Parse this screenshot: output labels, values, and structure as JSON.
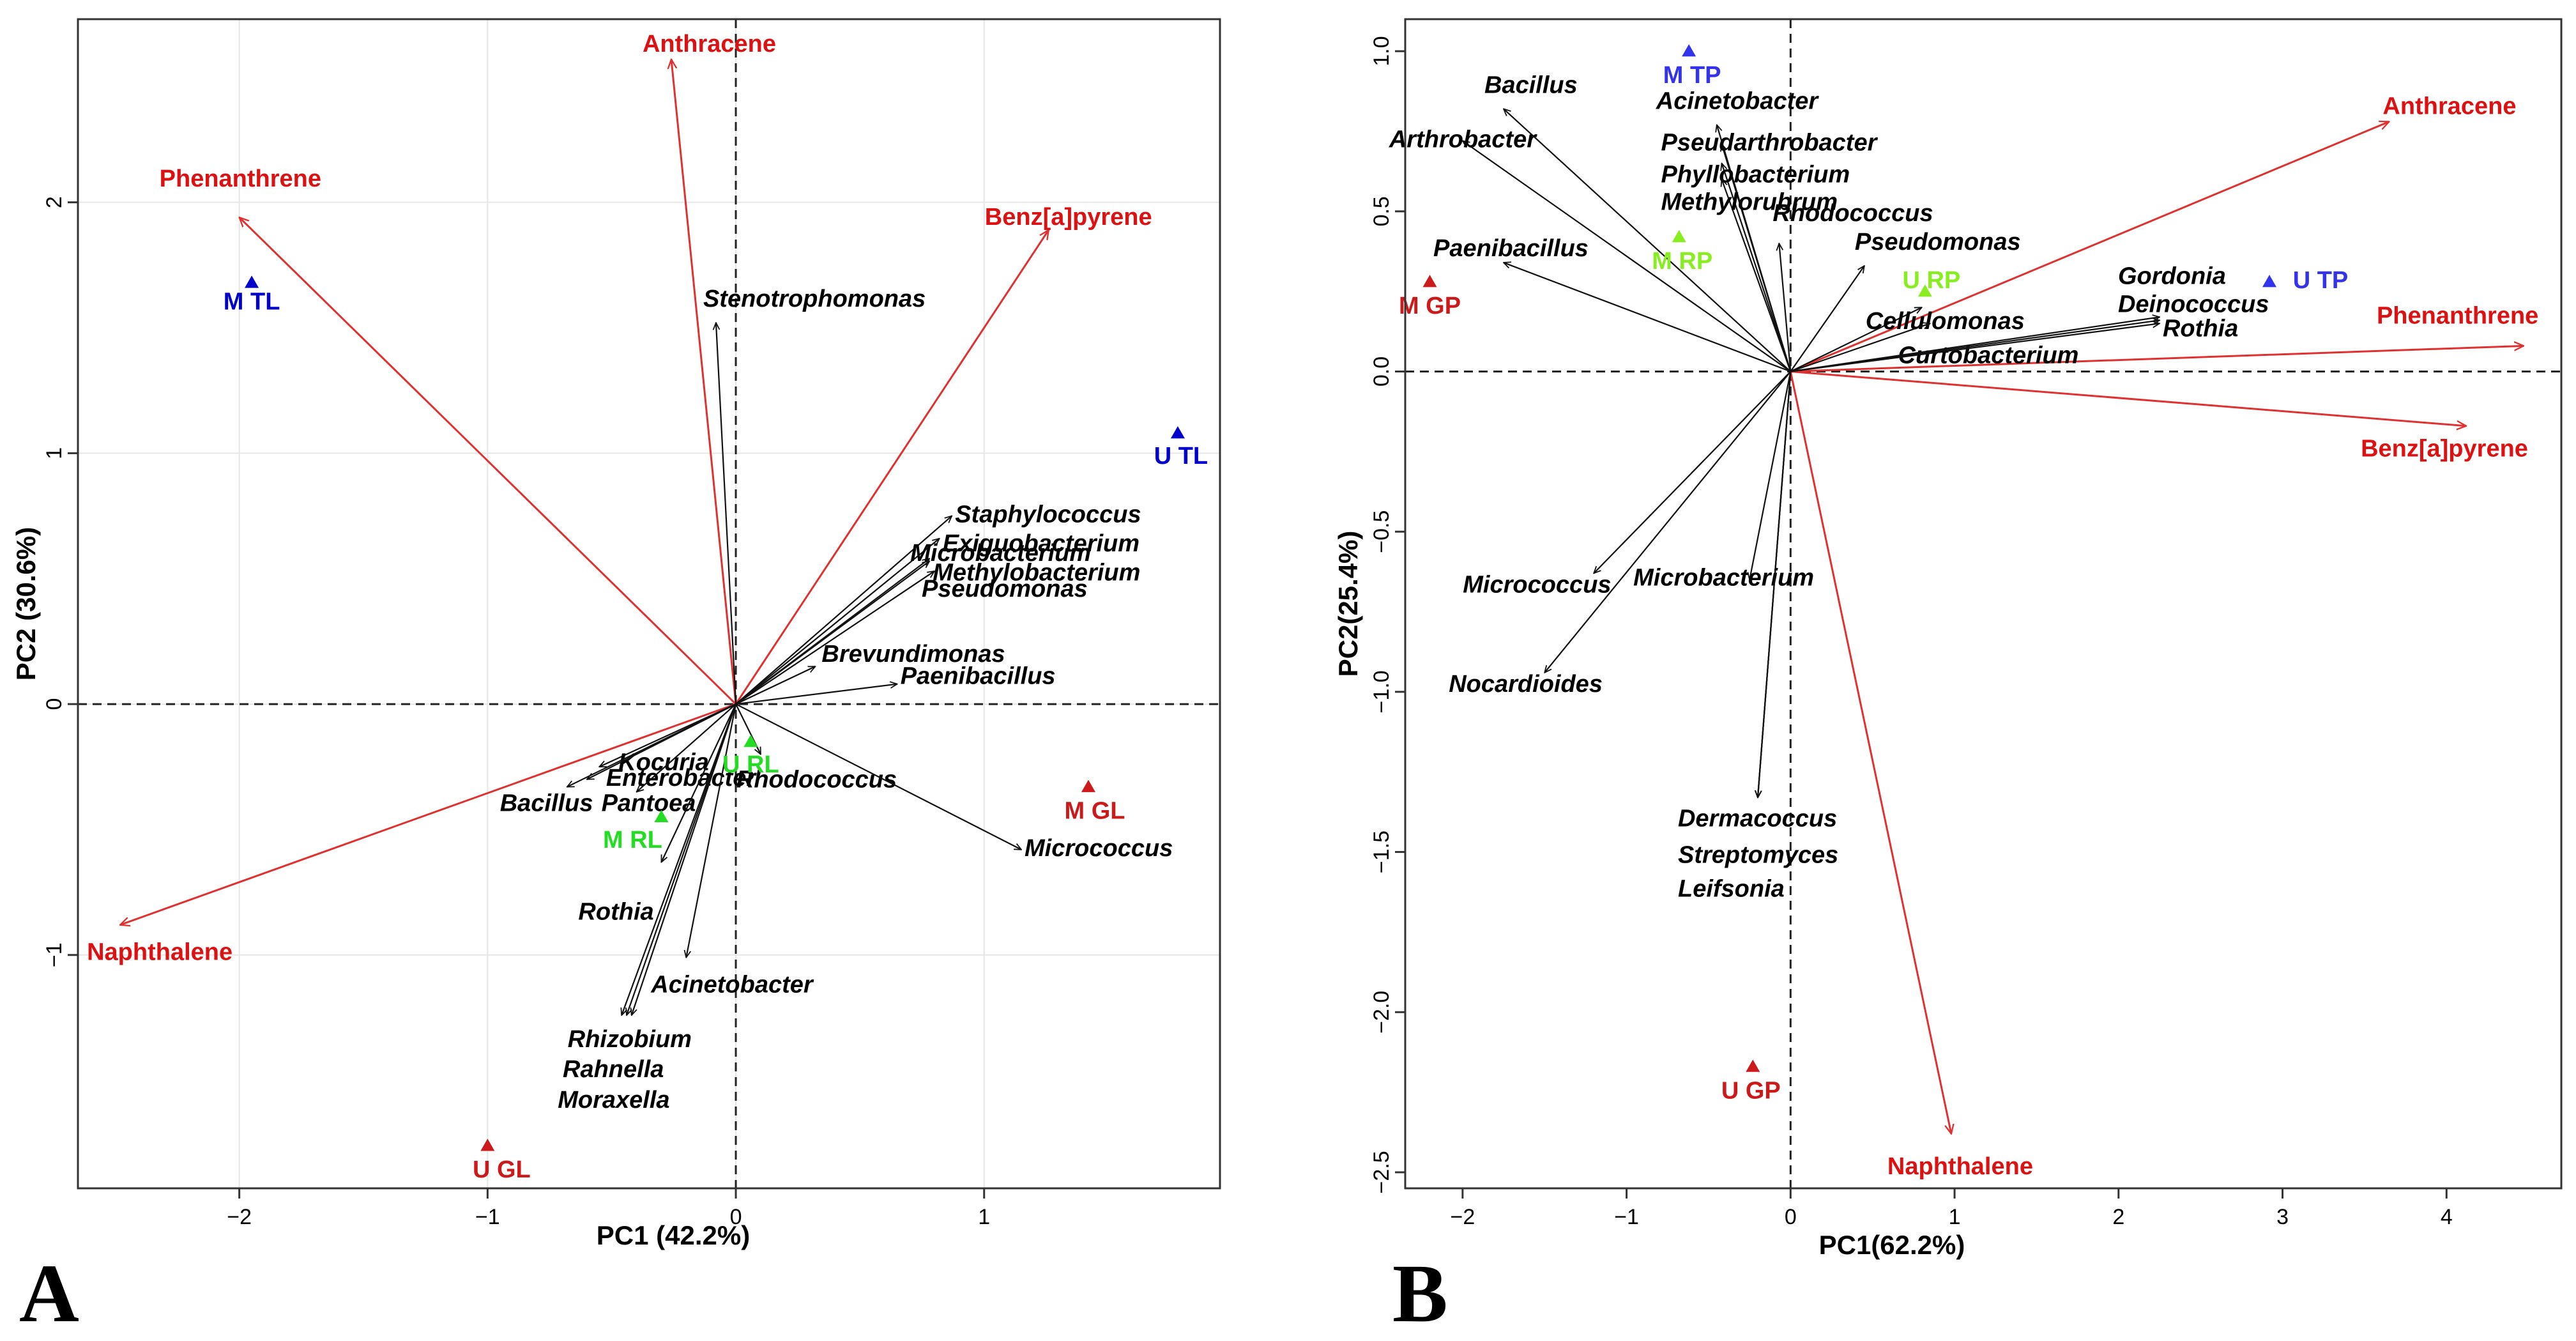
{
  "chart_data": [
    {
      "type": "scatter",
      "title": "",
      "panel_label": "A",
      "xlabel": "PC1 (42.2%)",
      "ylabel": "PC2 (30.6%)",
      "xlim": [
        -2.65,
        1.95
      ],
      "ylim": [
        -1.93,
        2.73
      ],
      "xticks": [
        -2,
        -1,
        0,
        1
      ],
      "yticks": [
        -1,
        0,
        1,
        2
      ],
      "grid": true,
      "env_vectors": [
        {
          "name": "Anthracene",
          "x": -0.26,
          "y": 2.57
        },
        {
          "name": "Phenanthrene",
          "x": -2.0,
          "y": 1.94
        },
        {
          "name": "Benz[a]pyrene",
          "x": 1.26,
          "y": 1.89
        },
        {
          "name": "Naphthalene",
          "x": -2.48,
          "y": -0.88
        }
      ],
      "species_vectors": [
        {
          "name": "Stenotrophomonas",
          "x": -0.08,
          "y": 1.52
        },
        {
          "name": "Staphylococcus",
          "x": 0.87,
          "y": 0.75
        },
        {
          "name": "Exiguobacterium",
          "x": 0.82,
          "y": 0.66
        },
        {
          "name": "Methylobacterium",
          "x": 0.78,
          "y": 0.58
        },
        {
          "name": "Microbacterium",
          "x": 0.78,
          "y": 0.57
        },
        {
          "name": "Pseudomonas",
          "x": 0.8,
          "y": 0.53
        },
        {
          "name": "Brevundimonas",
          "x": 0.32,
          "y": 0.15
        },
        {
          "name": "Paenibacillus",
          "x": 0.65,
          "y": 0.08
        },
        {
          "name": "Rhodococcus",
          "x": 0.1,
          "y": -0.2
        },
        {
          "name": "Micrococcus",
          "x": 1.15,
          "y": -0.58
        },
        {
          "name": "Kocuria",
          "x": -0.55,
          "y": -0.25
        },
        {
          "name": "Enterobacter",
          "x": -0.6,
          "y": -0.3
        },
        {
          "name": "Pantoea",
          "x": -0.4,
          "y": -0.35
        },
        {
          "name": "Bacillus",
          "x": -0.68,
          "y": -0.33
        },
        {
          "name": "Rothia",
          "x": -0.3,
          "y": -0.63
        },
        {
          "name": "Acinetobacter",
          "x": -0.2,
          "y": -1.01
        },
        {
          "name": "Rhizobium",
          "x": -0.42,
          "y": -1.24
        },
        {
          "name": "Rahnella",
          "x": -0.44,
          "y": -1.24
        },
        {
          "name": "Moraxella",
          "x": -0.46,
          "y": -1.24
        }
      ],
      "samples": [
        {
          "name": "M TL",
          "x": -1.95,
          "y": 1.68,
          "color": "#0000cc"
        },
        {
          "name": "U TL",
          "x": 1.78,
          "y": 1.08,
          "color": "#0000cc"
        },
        {
          "name": "M GL",
          "x": 1.42,
          "y": -0.33,
          "color": "#cc1a1a"
        },
        {
          "name": "U GL",
          "x": -1.0,
          "y": -1.76,
          "color": "#cc1a1a"
        },
        {
          "name": "U RL",
          "x": 0.06,
          "y": -0.15,
          "color": "#22dd22"
        },
        {
          "name": "M RL",
          "x": -0.3,
          "y": -0.45,
          "color": "#22dd22"
        }
      ]
    },
    {
      "type": "scatter",
      "title": "",
      "panel_label": "B",
      "xlabel": "PC1(62.2%)",
      "ylabel": "PC2(25.4%)",
      "xlim": [
        -2.35,
        4.7
      ],
      "ylim": [
        -2.55,
        1.1
      ],
      "xticks": [
        -2,
        -1,
        0,
        1,
        2,
        3,
        4
      ],
      "yticks": [
        -2.5,
        -2.0,
        -1.5,
        -1.0,
        -0.5,
        0.0,
        0.5,
        1.0
      ],
      "ytick_labels": [
        "−2.5",
        "−2.0",
        "−1.5",
        "−1.0",
        "−0.5",
        "0.0",
        "0.5",
        "1.0"
      ],
      "grid": false,
      "env_vectors": [
        {
          "name": "Anthracene",
          "x": 3.65,
          "y": 0.78
        },
        {
          "name": "Phenanthrene",
          "x": 4.47,
          "y": 0.08
        },
        {
          "name": "Benz[a]pyrene",
          "x": 4.12,
          "y": -0.17
        },
        {
          "name": "Naphthalene",
          "x": 0.98,
          "y": -2.38
        }
      ],
      "species_vectors": [
        {
          "name": "Bacillus",
          "x": -1.75,
          "y": 0.82
        },
        {
          "name": "Arthrobacter",
          "x": -2.0,
          "y": 0.72
        },
        {
          "name": "Acinetobacter",
          "x": -0.45,
          "y": 0.77
        },
        {
          "name": "Pseudarthrobacter",
          "x": -0.42,
          "y": 0.71
        },
        {
          "name": "Phyllobacterium",
          "x": -0.42,
          "y": 0.65
        },
        {
          "name": "Methylorubrum",
          "x": -0.42,
          "y": 0.6
        },
        {
          "name": "Rhodococcus",
          "x": -0.07,
          "y": 0.4
        },
        {
          "name": "Pseudomonas",
          "x": 0.45,
          "y": 0.33
        },
        {
          "name": "Cellulomonas",
          "x": 0.8,
          "y": 0.2
        },
        {
          "name": "Curtobacterium",
          "x": 0.85,
          "y": 0.15
        },
        {
          "name": "Gordonia",
          "x": 2.25,
          "y": 0.17
        },
        {
          "name": "Deinococcus",
          "x": 2.25,
          "y": 0.16
        },
        {
          "name": "Rothia",
          "x": 2.25,
          "y": 0.15
        },
        {
          "name": "Paenibacillus",
          "x": -1.75,
          "y": 0.34
        },
        {
          "name": "Micrococcus",
          "x": -1.2,
          "y": -0.63
        },
        {
          "name": "Microbacterium",
          "x": -0.25,
          "y": -0.65
        },
        {
          "name": "Nocardioides",
          "x": -1.5,
          "y": -0.94
        },
        {
          "name": "Dermacoccus",
          "x": -0.2,
          "y": -1.33
        },
        {
          "name": "Streptomyces",
          "x": -0.2,
          "y": -1.33
        },
        {
          "name": "Leifsonia",
          "x": -0.2,
          "y": -1.33
        }
      ],
      "samples": [
        {
          "name": "M TP",
          "x": -0.62,
          "y": 1.0,
          "color": "#3333ee"
        },
        {
          "name": "U TP",
          "x": 2.92,
          "y": 0.28,
          "color": "#3333ee"
        },
        {
          "name": "M RP",
          "x": -0.68,
          "y": 0.42,
          "color": "#88ee22"
        },
        {
          "name": "U RP",
          "x": 0.82,
          "y": 0.25,
          "color": "#88ee22"
        },
        {
          "name": "M GP",
          "x": -2.2,
          "y": 0.28,
          "color": "#cc1a1a"
        },
        {
          "name": "U GP",
          "x": -0.23,
          "y": -2.17,
          "color": "#cc1a1a"
        }
      ]
    }
  ],
  "colors": {
    "env_vector": "#e03131",
    "env_label": "#dd1111",
    "species_vector": "#111111",
    "grid": "#e6e6e6"
  }
}
